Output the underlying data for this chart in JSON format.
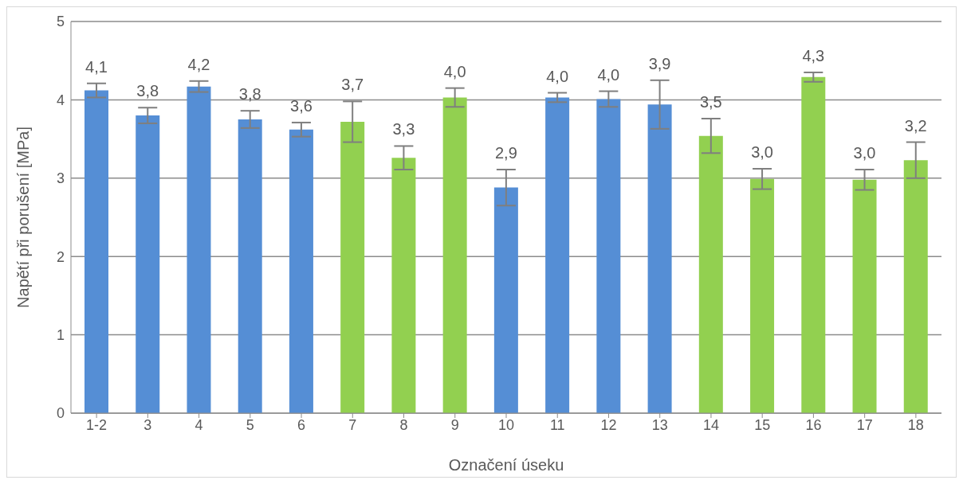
{
  "chart_data": {
    "type": "bar",
    "xlabel": "Označení úseku",
    "ylabel": "Napětí při porušení [MPa]",
    "categories": [
      "1-2",
      "3",
      "4",
      "5",
      "6",
      "7",
      "8",
      "9",
      "10",
      "11",
      "12",
      "13",
      "14",
      "15",
      "16",
      "17",
      "18"
    ],
    "values": [
      4.12,
      3.8,
      4.17,
      3.75,
      3.62,
      3.72,
      3.26,
      4.03,
      2.88,
      4.03,
      4.01,
      3.94,
      3.54,
      2.99,
      4.29,
      2.98,
      3.23
    ],
    "errors": [
      0.09,
      0.1,
      0.07,
      0.11,
      0.09,
      0.26,
      0.15,
      0.12,
      0.23,
      0.06,
      0.1,
      0.31,
      0.22,
      0.13,
      0.06,
      0.13,
      0.23
    ],
    "value_labels": [
      "4,1",
      "3,8",
      "4,2",
      "3,8",
      "3,6",
      "3,7",
      "3,3",
      "4,0",
      "2,9",
      "4,0",
      "4,0",
      "3,9",
      "3,5",
      "3,0",
      "4,3",
      "3,0",
      "3,2"
    ],
    "colors": [
      "#558ed5",
      "#558ed5",
      "#558ed5",
      "#558ed5",
      "#558ed5",
      "#92d050",
      "#92d050",
      "#92d050",
      "#558ed5",
      "#558ed5",
      "#558ed5",
      "#558ed5",
      "#92d050",
      "#92d050",
      "#92d050",
      "#92d050",
      "#92d050"
    ],
    "ylim": [
      0,
      5
    ],
    "yticks": [
      0,
      1,
      2,
      3,
      4,
      5
    ],
    "grid": "y",
    "legend": false
  }
}
